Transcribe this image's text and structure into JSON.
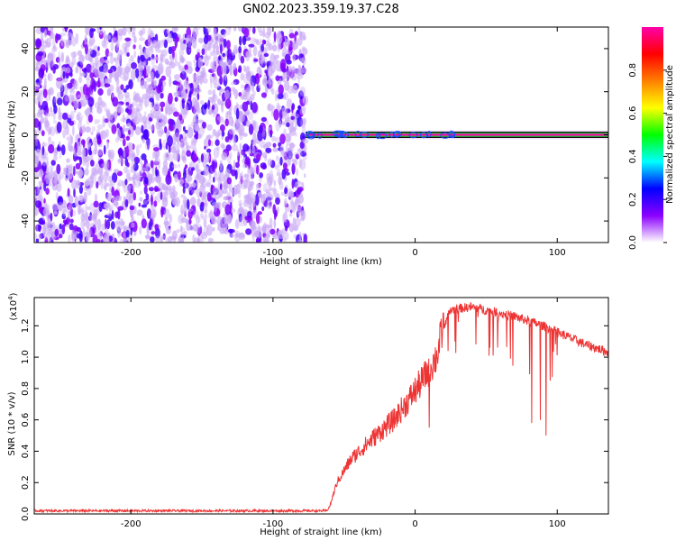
{
  "title": "GN02.2023.359.19.37.C28",
  "chart_data": [
    {
      "type": "heatmap",
      "xlabel": "Height of straight line (km)",
      "ylabel": "Frequency (Hz)",
      "xlim": [
        -268,
        136
      ],
      "ylim": [
        -50,
        50
      ],
      "x_ticks": [
        -200,
        -100,
        0,
        100
      ],
      "y_ticks": [
        -40,
        -20,
        0,
        20,
        40
      ],
      "x_tick_labels": [
        "-200",
        "-100",
        "0",
        "100"
      ],
      "y_tick_labels": [
        "-40",
        "-20",
        "0",
        "20",
        "40"
      ],
      "noise_region": {
        "x_from": -268,
        "x_to": -77,
        "freq_from": -50,
        "freq_to": 50,
        "level": 0.1
      },
      "signal_line": {
        "x_from": -77,
        "x_to": 136,
        "frequency": 0,
        "level": 1.0
      },
      "colorbar": {
        "label": "Normalized spectral amplitude",
        "range": [
          0,
          1
        ],
        "ticks": [
          0,
          0.2,
          0.4,
          0.6,
          0.8
        ],
        "tick_labels": [
          "0.0",
          "0.2",
          "0.4",
          "0.6",
          "0.8"
        ],
        "colors": [
          "#ffffff",
          "#8b00ff",
          "#0000ff",
          "#00ffff",
          "#00ff00",
          "#ffff00",
          "#ff8000",
          "#ff0000",
          "#ff00aa"
        ]
      }
    },
    {
      "type": "line",
      "xlabel": "Height of straight line (km)",
      "ylabel": "SNR (10 * v/v)",
      "y_multiplier": "(x10",
      "y_multiplier_exp": "4",
      "y_multiplier_close": ")",
      "xlim": [
        -268,
        136
      ],
      "ylim": [
        0,
        1.38
      ],
      "x_ticks": [
        -200,
        -100,
        0,
        100
      ],
      "y_ticks": [
        0,
        0.2,
        0.4,
        0.6,
        0.8,
        1.0,
        1.2
      ],
      "x_tick_labels": [
        "-200",
        "-100",
        "0",
        "100"
      ],
      "y_tick_labels": [
        "0.0",
        "0.2",
        "0.4",
        "0.6",
        "0.8",
        "1.0",
        "1.2"
      ],
      "color": "#ee3333",
      "envelope": {
        "x": [
          -268,
          -200,
          -120,
          -62,
          -60,
          -55,
          -45,
          -30,
          -15,
          -5,
          5,
          15,
          20,
          25,
          30,
          40,
          50,
          60,
          70,
          80,
          90,
          100,
          110,
          120,
          130,
          136
        ],
        "y": [
          0.02,
          0.02,
          0.02,
          0.02,
          0.05,
          0.2,
          0.35,
          0.48,
          0.6,
          0.72,
          0.85,
          1.0,
          1.2,
          1.3,
          1.31,
          1.32,
          1.3,
          1.28,
          1.26,
          1.23,
          1.2,
          1.16,
          1.12,
          1.08,
          1.05,
          1.03
        ]
      },
      "dips": [
        {
          "x": 10,
          "y": 0.55
        },
        {
          "x": 28,
          "y": 1.1
        },
        {
          "x": 55,
          "y": 1.05
        },
        {
          "x": 82,
          "y": 0.58
        },
        {
          "x": 88,
          "y": 0.6
        },
        {
          "x": 92,
          "y": 0.5
        },
        {
          "x": 95,
          "y": 0.85
        }
      ]
    }
  ]
}
